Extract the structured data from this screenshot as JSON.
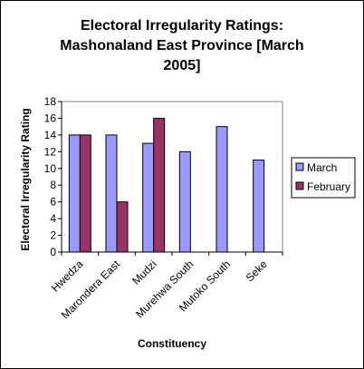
{
  "chart_data": {
    "type": "bar",
    "title": "Electoral Irregularity Ratings: Mashonaland East Province [March 2005]",
    "title_lines": [
      "Electoral Irregularity Ratings:",
      "Mashonaland East Province [March",
      "2005]"
    ],
    "xlabel": "Constituency",
    "ylabel": "Electoral Irregularity Rating",
    "ylim": [
      0,
      18
    ],
    "yticks": [
      0,
      2,
      4,
      6,
      8,
      10,
      12,
      14,
      16,
      18
    ],
    "grid": false,
    "legend_position": "right",
    "categories": [
      "Hwedza",
      "Marondera East",
      "Mudzi",
      "Murehwa South",
      "Mutoko South",
      "Seke"
    ],
    "series": [
      {
        "name": "March",
        "color": "#9999ff",
        "values": [
          14,
          14,
          13,
          12,
          15,
          11
        ]
      },
      {
        "name": "February",
        "color": "#993366",
        "values": [
          14,
          6,
          16,
          null,
          null,
          null
        ]
      }
    ]
  }
}
